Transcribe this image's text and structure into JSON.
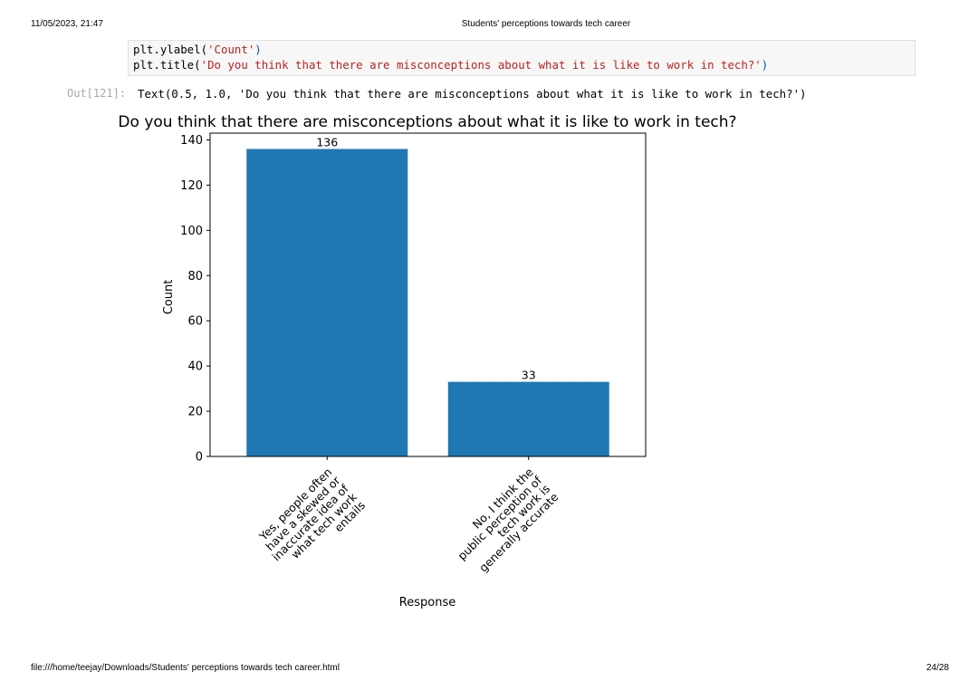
{
  "header": {
    "timestamp": "11/05/2023, 21:47",
    "doc_title": "Students' perceptions towards tech career"
  },
  "footer": {
    "path": "file:///home/teejay/Downloads/Students' perceptions towards tech career.html",
    "page": "24/28"
  },
  "code": {
    "line1_prefix": "plt.ylabel(",
    "line1_string": "'Count'",
    "line1_suffix": ")",
    "line2_prefix": "plt.title(",
    "line2_string": "'Do you think that there are misconceptions about what it is like to work in tech?'",
    "line2_suffix": ")"
  },
  "output": {
    "prompt": "Out[121]:",
    "text": "Text(0.5, 1.0, 'Do you think that there are misconceptions about what it is like to work in tech?')"
  },
  "chart_data": {
    "type": "bar",
    "title": "Do you think that there are misconceptions about what it is like to work in tech?",
    "xlabel": "Response",
    "ylabel": "Count",
    "categories": [
      "Yes, people often have a skewed or inaccurate idea of what tech work entails",
      "No, I think the public perception of tech work is generally accurate"
    ],
    "category_label_lines": [
      [
        "Yes, people often",
        "have a skewed or",
        "inaccurate idea of",
        "what tech work",
        "entails"
      ],
      [
        "No, I think the",
        "public perception of",
        "tech work is",
        "generally accurate"
      ]
    ],
    "values": [
      136,
      33
    ],
    "data_labels": [
      "136",
      "33"
    ],
    "ylim": [
      0,
      143
    ],
    "yticks": [
      0,
      20,
      40,
      60,
      80,
      100,
      120,
      140
    ],
    "bar_color": "#1f77b4",
    "grid": false,
    "legend": "none"
  }
}
